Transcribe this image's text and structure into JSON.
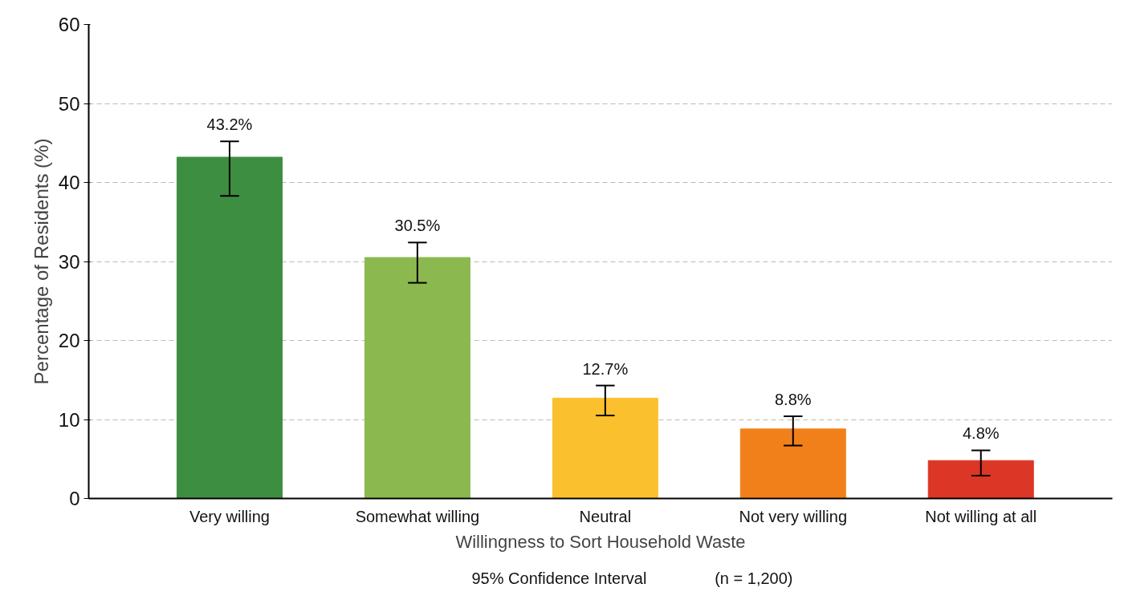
{
  "chart_data": {
    "type": "bar",
    "xlabel": "Willingness to Sort Household Waste",
    "ylabel": "Percentage of Residents (%)",
    "categories": [
      "Very willing",
      "Somewhat willing",
      "Neutral",
      "Not very willing",
      "Not willing at all"
    ],
    "values": [
      43.2,
      30.5,
      12.7,
      8.8,
      4.8
    ],
    "colors": [
      "#3e8e41",
      "#8bb84f",
      "#fbc02d",
      "#f2801a",
      "#dc3626"
    ],
    "errors": [
      [
        38.3,
        45.2
      ],
      [
        27.3,
        32.4
      ],
      [
        10.5,
        14.3
      ],
      [
        6.7,
        10.4
      ],
      [
        2.9,
        6.1
      ]
    ],
    "value_labels": [
      "43.2%",
      "30.5%",
      "12.7%",
      "8.8%",
      "4.8%"
    ],
    "ylim": [
      0,
      60
    ],
    "yticks": [
      0,
      10,
      20,
      30,
      40,
      50,
      60
    ],
    "grid": "y",
    "annotations": [
      "95% Confidence Interval",
      "(n = 1,200)"
    ]
  }
}
